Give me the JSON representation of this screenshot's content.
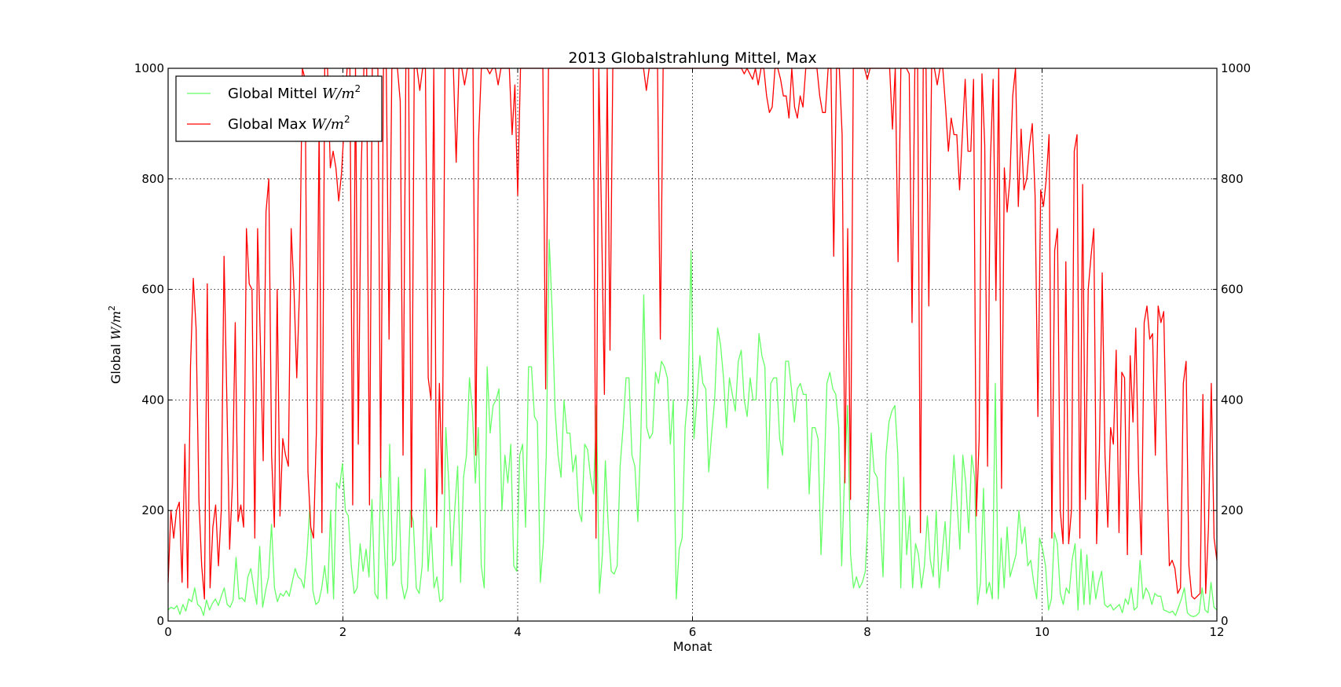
{
  "chart_data": {
    "type": "line",
    "title": "2013 Globalstrahlung Mittel, Max",
    "xlabel": "Monat",
    "ylabel": "Global W/m²",
    "ylabel_plain": "Global",
    "ylabel_math": "W/m",
    "ylabel_sup": "2",
    "xlim": [
      0,
      12
    ],
    "ylim": [
      0,
      1000
    ],
    "xticks": [
      0,
      2,
      4,
      6,
      8,
      10,
      12
    ],
    "yticks": [
      0,
      200,
      400,
      600,
      800,
      1000
    ],
    "grid": true,
    "grid_style": "dotted",
    "secondary_y_axis": true,
    "legend_position": "top-left",
    "legend_entries": [
      {
        "text": "Global Mittel",
        "math": "W/m",
        "sup": "2",
        "color": "#66ff66"
      },
      {
        "text": "Global Max",
        "math": "W/m",
        "sup": "2",
        "color": "#ff0000"
      }
    ],
    "series": [
      {
        "name": "Global Mittel W/m²",
        "color": "#66ff66",
        "values": [
          20,
          25,
          22,
          28,
          12,
          30,
          18,
          40,
          35,
          60,
          30,
          25,
          10,
          38,
          20,
          32,
          40,
          28,
          45,
          60,
          30,
          25,
          38,
          115,
          40,
          42,
          35,
          80,
          95,
          60,
          30,
          135,
          25,
          55,
          80,
          175,
          60,
          35,
          50,
          45,
          55,
          45,
          70,
          95,
          80,
          75,
          60,
          120,
          210,
          55,
          30,
          35,
          60,
          100,
          50,
          200,
          40,
          250,
          240,
          285,
          200,
          190,
          100,
          50,
          60,
          140,
          90,
          130,
          80,
          220,
          50,
          40,
          270,
          160,
          40,
          320,
          100,
          110,
          260,
          70,
          40,
          60,
          200,
          180,
          60,
          50,
          100,
          275,
          90,
          170,
          60,
          80,
          35,
          40,
          350,
          250,
          100,
          200,
          280,
          70,
          260,
          300,
          440,
          380,
          250,
          350,
          100,
          60,
          460,
          340,
          390,
          400,
          420,
          200,
          300,
          250,
          320,
          100,
          90,
          300,
          320,
          170,
          460,
          460,
          370,
          360,
          70,
          140,
          300,
          690,
          560,
          380,
          300,
          260,
          400,
          340,
          340,
          270,
          300,
          200,
          180,
          320,
          310,
          260,
          230,
          390,
          50,
          120,
          290,
          170,
          90,
          85,
          100,
          280,
          350,
          440,
          440,
          300,
          280,
          180,
          330,
          590,
          350,
          330,
          340,
          450,
          430,
          470,
          460,
          440,
          320,
          400,
          40,
          130,
          150,
          350,
          410,
          670,
          330,
          400,
          480,
          430,
          420,
          270,
          340,
          400,
          530,
          500,
          440,
          350,
          440,
          410,
          380,
          470,
          490,
          400,
          370,
          440,
          400,
          400,
          520,
          480,
          460,
          240,
          430,
          440,
          440,
          330,
          300,
          470,
          470,
          420,
          360,
          420,
          430,
          410,
          410,
          230,
          350,
          350,
          330,
          120,
          250,
          430,
          450,
          420,
          410,
          350,
          100,
          270,
          390,
          120,
          60,
          80,
          60,
          70,
          90,
          200,
          340,
          270,
          260,
          180,
          80,
          300,
          360,
          380,
          390,
          300,
          60,
          260,
          120,
          190,
          60,
          140,
          120,
          60,
          100,
          190,
          110,
          80,
          200,
          60,
          120,
          180,
          90,
          200,
          300,
          220,
          130,
          300,
          250,
          160,
          300,
          260,
          30,
          70,
          240,
          50,
          70,
          40,
          430,
          40,
          150,
          60,
          170,
          80,
          100,
          120,
          200,
          140,
          170,
          100,
          110,
          70,
          40,
          150,
          130,
          100,
          20,
          40,
          160,
          140,
          50,
          30,
          60,
          50,
          110,
          140,
          20,
          130,
          30,
          120,
          30,
          90,
          40,
          70,
          90,
          30,
          25,
          30,
          20,
          25,
          30,
          15,
          40,
          30,
          60,
          20,
          25,
          110,
          40,
          60,
          50,
          30,
          50,
          45,
          45,
          20,
          18,
          15,
          18,
          10,
          25,
          40,
          60,
          15,
          10,
          8,
          10,
          15,
          60,
          20,
          15,
          70,
          25,
          20
        ]
      },
      {
        "name": "Global Max W/m²",
        "color": "#ff0000",
        "values": [
          70,
          200,
          150,
          200,
          215,
          70,
          320,
          60,
          460,
          620,
          530,
          220,
          100,
          40,
          610,
          60,
          170,
          210,
          100,
          200,
          660,
          400,
          130,
          250,
          540,
          180,
          210,
          170,
          710,
          610,
          600,
          150,
          710,
          500,
          290,
          740,
          800,
          300,
          170,
          600,
          190,
          330,
          300,
          280,
          710,
          600,
          440,
          600,
          1000,
          980,
          270,
          170,
          150,
          340,
          900,
          160,
          1000,
          1000,
          820,
          850,
          820,
          760,
          810,
          900,
          1000,
          1000,
          210,
          1000,
          320,
          810,
          1000,
          1000,
          210,
          1000,
          1000,
          1000,
          260,
          1000,
          1000,
          510,
          1000,
          1000,
          1000,
          940,
          300,
          1000,
          1000,
          170,
          1000,
          1000,
          960,
          1000,
          1000,
          440,
          400,
          1000,
          170,
          430,
          230,
          1000,
          1000,
          1000,
          1000,
          830,
          1000,
          1000,
          970,
          1000,
          1000,
          1000,
          300,
          870,
          1000,
          1000,
          1000,
          990,
          1000,
          1000,
          970,
          1000,
          1000,
          1000,
          1000,
          880,
          970,
          770,
          1000,
          1000,
          1000,
          1000,
          1000,
          1000,
          1000,
          1000,
          1000,
          420,
          1000,
          1000,
          1000,
          1000,
          1000,
          1000,
          1000,
          1000,
          1000,
          1000,
          1000,
          1000,
          1000,
          1000,
          1000,
          1000,
          1000,
          150,
          1000,
          720,
          410,
          1000,
          490,
          1000,
          1000,
          1000,
          1000,
          1000,
          1000,
          1000,
          1000,
          1000,
          1000,
          1000,
          1000,
          960,
          1000,
          1000,
          1000,
          1000,
          510,
          1000,
          1000,
          1000,
          1000,
          1000,
          1000,
          1000,
          1000,
          1000,
          1000,
          1000,
          1000,
          1000,
          1000,
          1000,
          1000,
          1000,
          1000,
          1000,
          1000,
          1000,
          1000,
          1000,
          1000,
          1000,
          1000,
          1000,
          1000,
          1000,
          990,
          1000,
          990,
          980,
          1000,
          970,
          1000,
          1000,
          950,
          920,
          930,
          1000,
          1000,
          980,
          950,
          950,
          910,
          1000,
          930,
          910,
          950,
          930,
          1000,
          1000,
          1000,
          1000,
          1000,
          950,
          920,
          920,
          1000,
          1000,
          660,
          1000,
          1000,
          880,
          250,
          710,
          220,
          1000,
          1000,
          1000,
          1000,
          1000,
          980,
          1000,
          1000,
          1000,
          1000,
          1000,
          1000,
          1000,
          1000,
          890,
          1000,
          650,
          1000,
          1000,
          1000,
          990,
          540,
          1000,
          1000,
          160,
          1000,
          1000,
          570,
          1000,
          1000,
          970,
          1000,
          1000,
          930,
          850,
          910,
          880,
          880,
          780,
          880,
          980,
          850,
          850,
          980,
          190,
          330,
          990,
          860,
          280,
          830,
          980,
          580,
          1000,
          240,
          820,
          740,
          800,
          950,
          1000,
          750,
          890,
          780,
          800,
          860,
          900,
          770,
          370,
          780,
          750,
          800,
          880,
          150,
          670,
          710,
          200,
          140,
          650,
          140,
          200,
          850,
          880,
          150,
          790,
          220,
          600,
          660,
          710,
          140,
          310,
          630,
          300,
          170,
          350,
          320,
          490,
          160,
          450,
          440,
          120,
          480,
          360,
          530,
          270,
          120,
          540,
          570,
          510,
          520,
          300,
          570,
          540,
          560,
          300,
          100,
          110,
          95,
          50,
          60,
          430,
          470,
          100,
          45,
          40,
          45,
          50,
          410,
          50,
          170,
          430,
          150,
          110
        ]
      }
    ]
  }
}
